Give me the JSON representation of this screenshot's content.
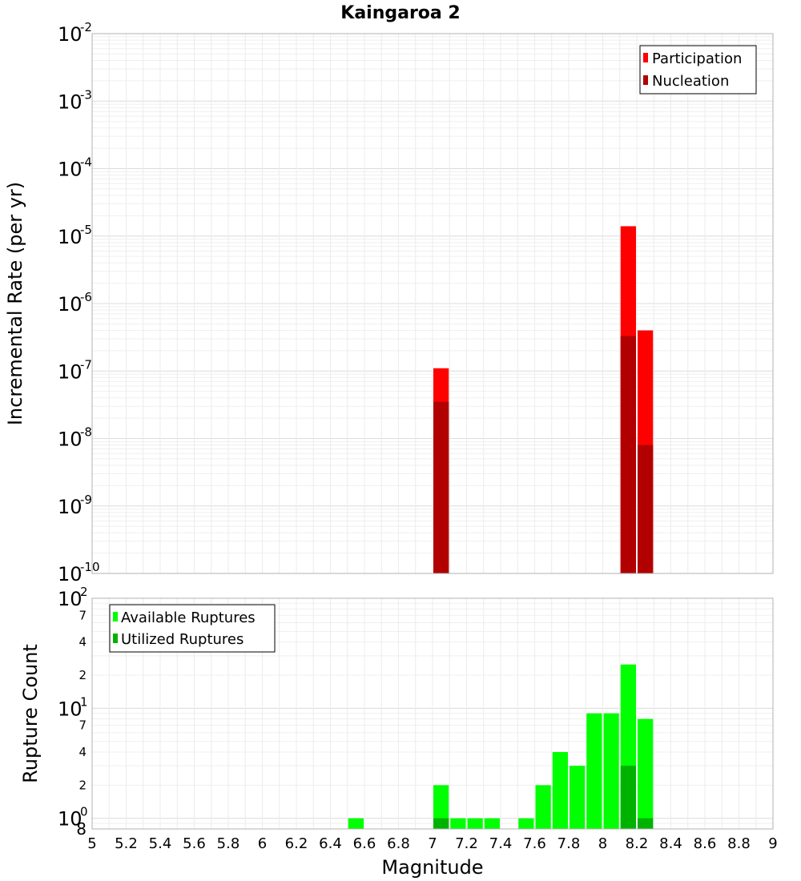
{
  "chart_data": [
    {
      "type": "bar",
      "title": "Kaingaroa 2",
      "xlabel": "",
      "ylabel": "Incremental Rate (per yr)",
      "yscale": "log",
      "ylim": [
        1e-10,
        0.01
      ],
      "xlim": [
        5,
        9
      ],
      "grid": true,
      "legend_position": "top-right",
      "y_ticks": [
        {
          "base": "10",
          "exp": "-2"
        },
        {
          "base": "10",
          "exp": "-3"
        },
        {
          "base": "10",
          "exp": "-4"
        },
        {
          "base": "10",
          "exp": "-5"
        },
        {
          "base": "10",
          "exp": "-6"
        },
        {
          "base": "10",
          "exp": "-7"
        },
        {
          "base": "10",
          "exp": "-8"
        },
        {
          "base": "10",
          "exp": "-9"
        },
        {
          "base": "10",
          "exp": "-10"
        }
      ],
      "series": [
        {
          "name": "Participation",
          "color": "#ff0000",
          "x": [
            7.05,
            8.15,
            8.25
          ],
          "values": [
            1.1e-07,
            1.4e-05,
            4e-07
          ]
        },
        {
          "name": "Nucleation",
          "color": "#b20000",
          "x": [
            7.05,
            8.15,
            8.25
          ],
          "values": [
            3.5e-08,
            3.3e-07,
            8e-09
          ]
        }
      ]
    },
    {
      "type": "bar",
      "title": "",
      "xlabel": "Magnitude",
      "ylabel": "Rupture Count",
      "yscale": "log",
      "ylim": [
        0.8,
        100
      ],
      "xlim": [
        5,
        9
      ],
      "grid": true,
      "legend_position": "top-left",
      "x_ticks": [
        "5",
        "5.2",
        "5.4",
        "5.6",
        "5.8",
        "6",
        "6.2",
        "6.4",
        "6.6",
        "6.8",
        "7",
        "7.2",
        "7.4",
        "7.6",
        "7.8",
        "8",
        "8.2",
        "8.4",
        "8.6",
        "8.8",
        "9"
      ],
      "y_major_ticks": [
        {
          "base": "10",
          "exp": "2"
        },
        {
          "base": "10",
          "exp": "1"
        },
        {
          "base": "10",
          "exp": "0"
        }
      ],
      "y_minor_labels": [
        "7",
        "4",
        "2",
        "7",
        "4",
        "2",
        "8"
      ],
      "series": [
        {
          "name": "Available Ruptures",
          "color": "#00ff00",
          "x": [
            6.55,
            7.05,
            7.15,
            7.25,
            7.35,
            7.55,
            7.65,
            7.75,
            7.85,
            7.95,
            8.05,
            8.15,
            8.25
          ],
          "values": [
            1,
            2,
            1,
            1,
            1,
            1,
            2,
            4,
            3,
            9,
            9,
            25,
            8
          ]
        },
        {
          "name": "Utilized Ruptures",
          "color": "#00b200",
          "x": [
            7.05,
            8.15,
            8.25
          ],
          "values": [
            1,
            3,
            1
          ]
        }
      ]
    }
  ]
}
